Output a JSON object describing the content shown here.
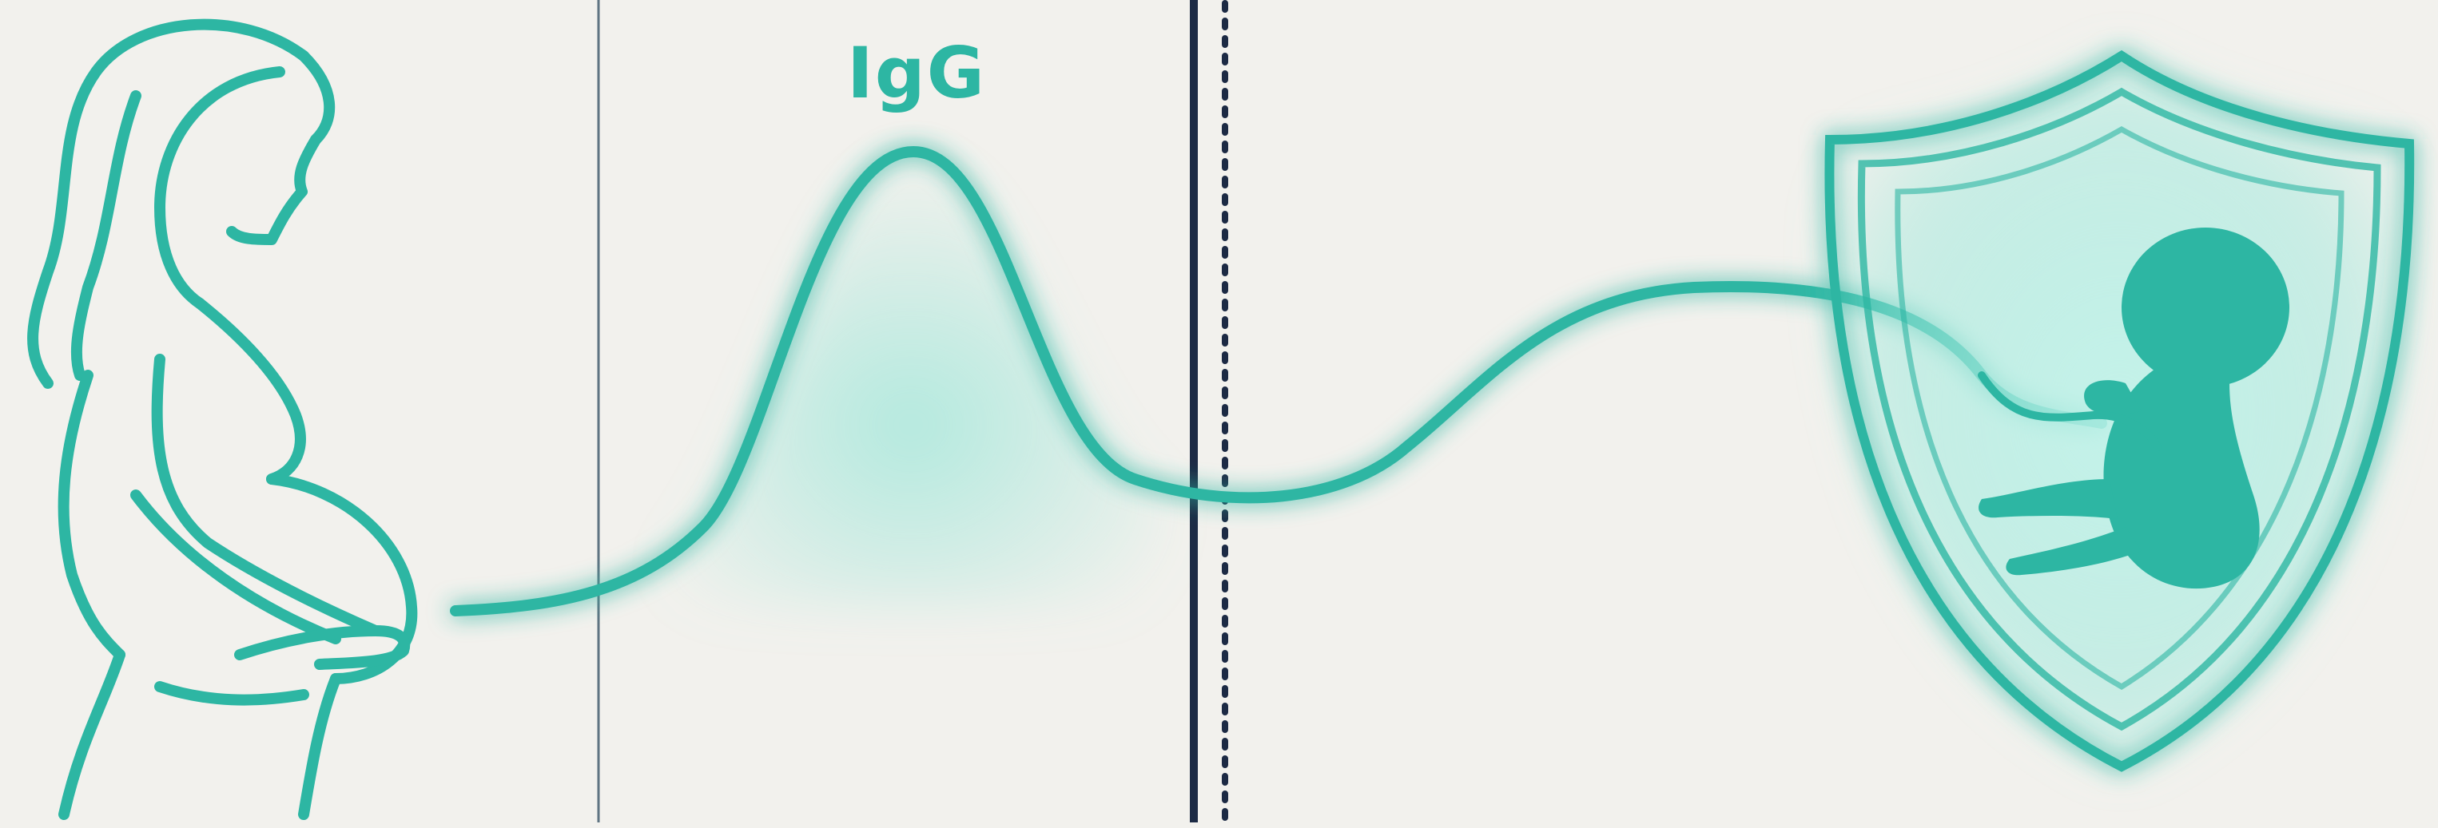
{
  "diagram": {
    "label": "IgG",
    "colors": {
      "background": "#f2f1ed",
      "accent": "#2db6a3",
      "glow": "#7fe3d2",
      "divider": "#1c2a44"
    },
    "icons": {
      "mother": "pregnant-woman-icon",
      "shield": "shield-icon",
      "fetus": "fetus-icon"
    },
    "barrier": {
      "style": "solid line with dotted line"
    }
  }
}
